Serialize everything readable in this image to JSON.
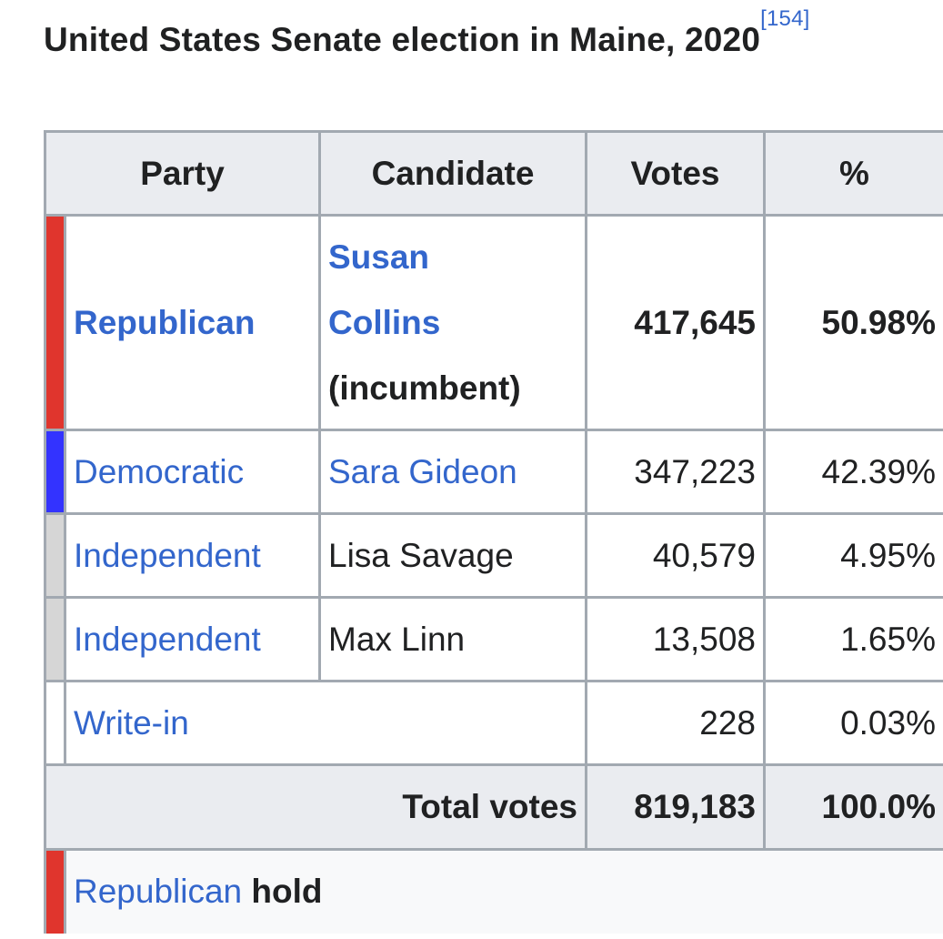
{
  "caption": {
    "title": "United States Senate election in Maine, 2020",
    "ref": "[154]"
  },
  "headers": {
    "party": "Party",
    "candidate": "Candidate",
    "votes": "Votes",
    "percent": "%"
  },
  "colors": {
    "republican": "#e0352d",
    "democratic": "#3333ff",
    "independent": "#d6d6d6",
    "header_bg": "#eaecf0",
    "link": "#3366cc"
  },
  "rows": [
    {
      "party": "Republican",
      "candidate_line1": "Susan",
      "candidate_line2": "Collins",
      "candidate_note": "(incumbent)",
      "votes": "417,645",
      "percent": "50.98%"
    },
    {
      "party": "Democratic",
      "candidate": "Sara Gideon",
      "votes": "347,223",
      "percent": "42.39%"
    },
    {
      "party": "Independent",
      "candidate": "Lisa Savage",
      "votes": "40,579",
      "percent": "4.95%"
    },
    {
      "party": "Independent",
      "candidate": "Max Linn",
      "votes": "13,508",
      "percent": "1.65%"
    },
    {
      "party": "Write-in",
      "votes": "228",
      "percent": "0.03%"
    }
  ],
  "total": {
    "label": "Total votes",
    "votes": "819,183",
    "percent": "100.0%"
  },
  "result": {
    "party": "Republican",
    "outcome": "hold"
  }
}
